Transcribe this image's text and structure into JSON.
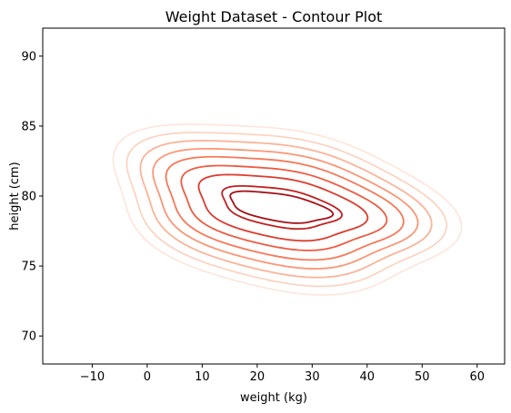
{
  "chart_data": {
    "type": "contour",
    "title": "Weight Dataset - Contour Plot",
    "xlabel": "weight (kg)",
    "ylabel": "height (cm)",
    "xlim": [
      -19,
      65
    ],
    "ylim": [
      68,
      92
    ],
    "xticks": [
      -10,
      0,
      10,
      20,
      30,
      40,
      50,
      60
    ],
    "yticks": [
      70,
      75,
      80,
      85,
      90
    ],
    "grid": false,
    "legend": "none",
    "colormap": "Reds",
    "center": [
      24,
      79.2
    ],
    "levels": [
      {
        "level": 1,
        "color": "#fee5d9",
        "rx": 30.5,
        "ry": 5.9
      },
      {
        "level": 2,
        "color": "#fdd0bc",
        "rx": 28.0,
        "ry": 5.3
      },
      {
        "level": 3,
        "color": "#fcb398",
        "rx": 25.5,
        "ry": 4.7
      },
      {
        "level": 4,
        "color": "#fc9676",
        "rx": 23.2,
        "ry": 4.1
      },
      {
        "level": 5,
        "color": "#f87858",
        "rx": 20.8,
        "ry": 3.5
      },
      {
        "level": 6,
        "color": "#ef5a41",
        "rx": 18.0,
        "ry": 2.85
      },
      {
        "level": 7,
        "color": "#dd3b2d",
        "rx": 14.8,
        "ry": 2.2
      },
      {
        "level": 8,
        "color": "#c1201f",
        "rx": 10.5,
        "ry": 1.4
      },
      {
        "level": 9,
        "color": "#a50f15",
        "rx": 9.0,
        "ry": 1.0
      }
    ]
  }
}
